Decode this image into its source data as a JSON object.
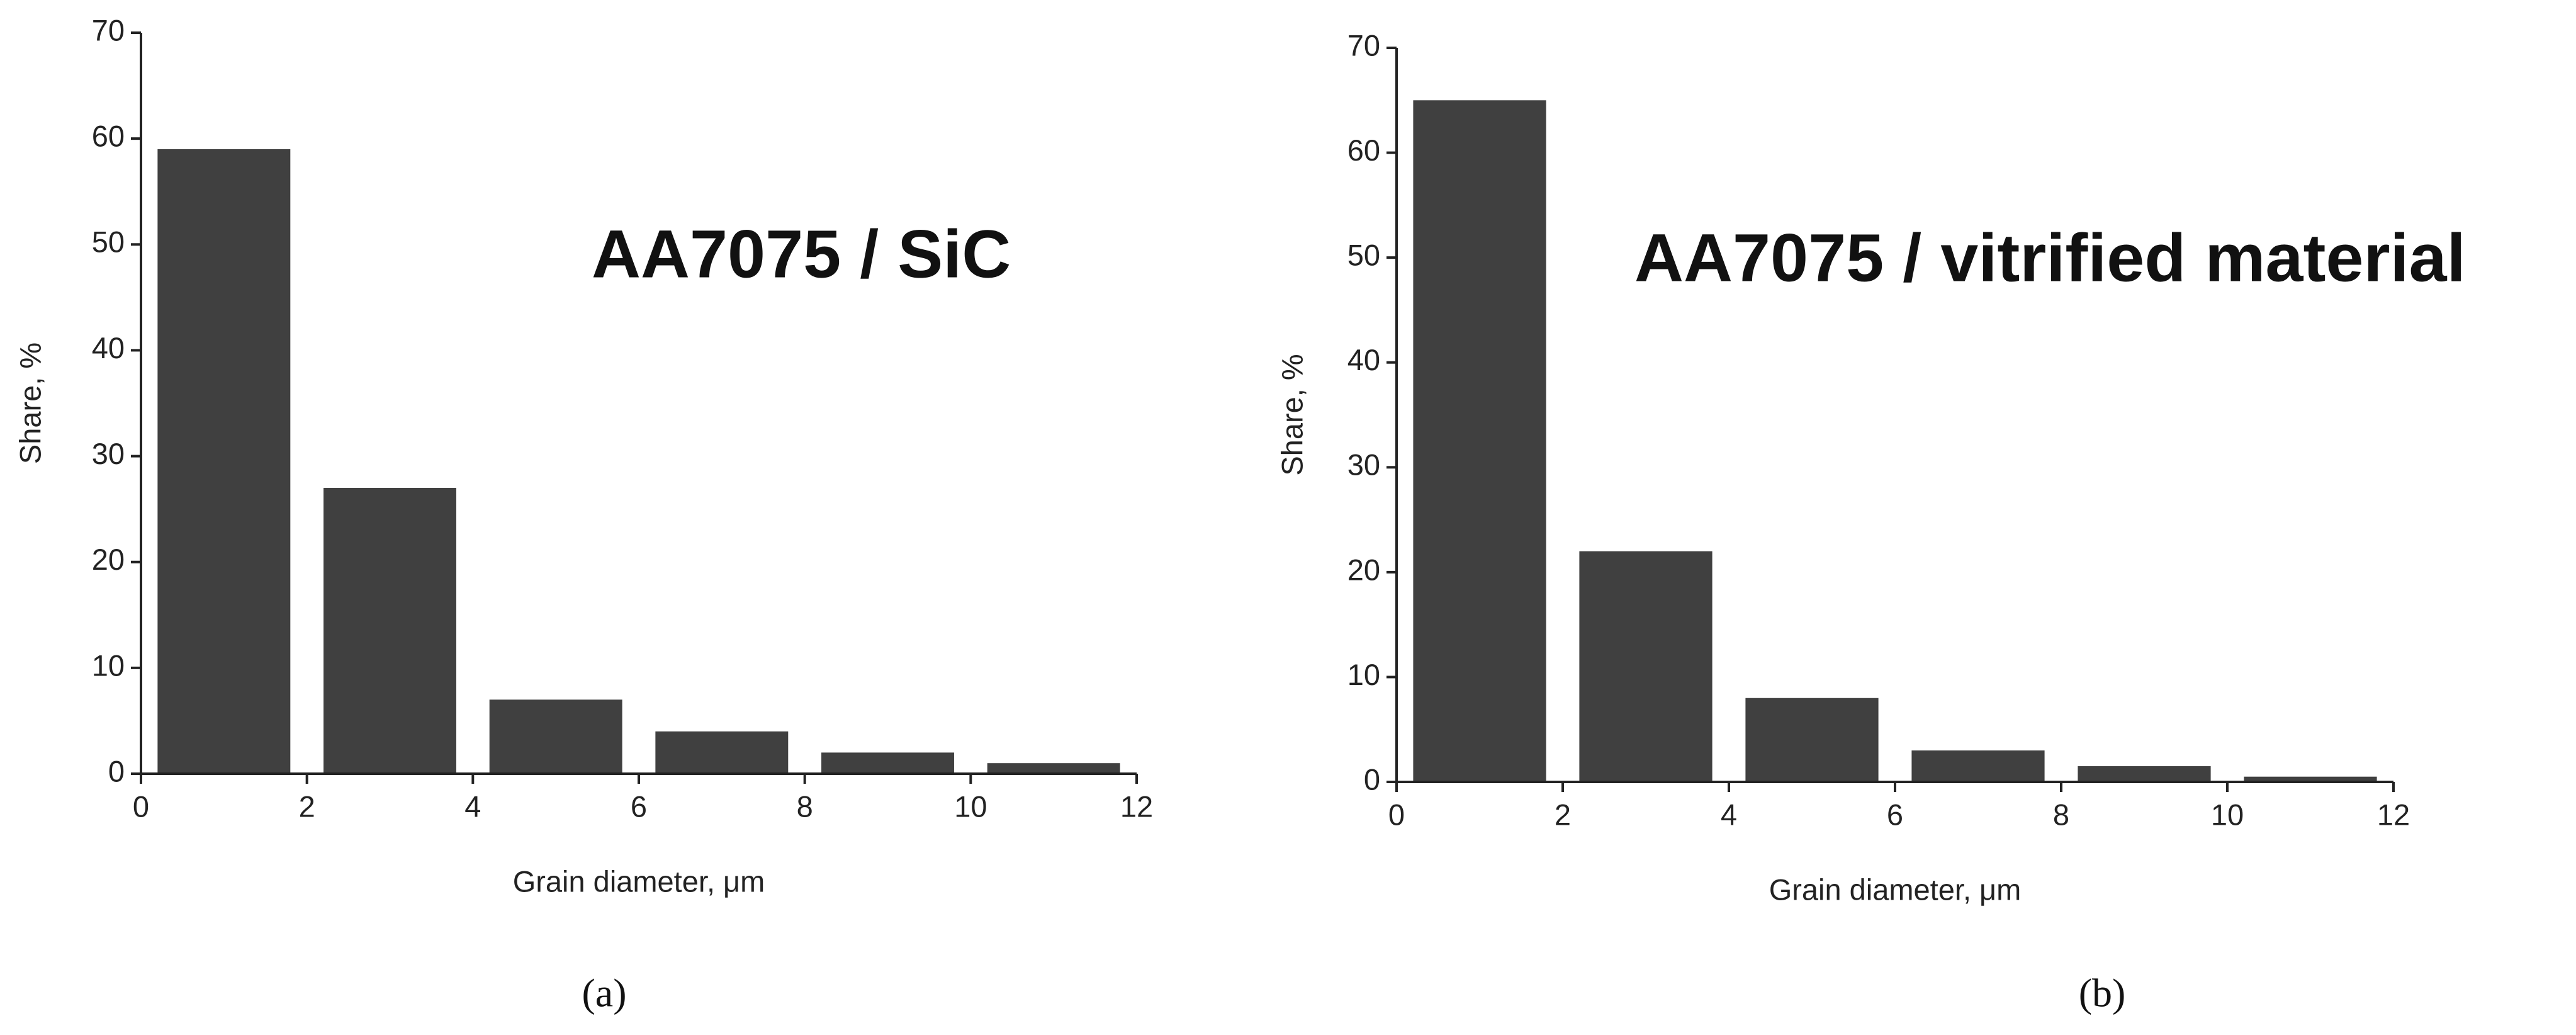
{
  "chart_data": [
    {
      "type": "histogram",
      "annotation": "AA7075 / SiC",
      "caption": "(a)",
      "x_label": "Grain diameter, μm",
      "y_label": "Share, %",
      "bins": [
        0,
        2,
        4,
        6,
        8,
        10,
        12
      ],
      "values": [
        59,
        27,
        7,
        4,
        2,
        1
      ],
      "color": "#404040",
      "xlim": [
        0,
        12
      ],
      "ylim": [
        0,
        70
      ],
      "xticks": [
        0,
        2,
        4,
        6,
        8,
        10,
        12
      ],
      "yticks": [
        0,
        10,
        20,
        30,
        40,
        50,
        60,
        70
      ]
    },
    {
      "type": "histogram",
      "annotation": "AA7075 / vitrified material",
      "caption": "(b)",
      "x_label": "Grain diameter, μm",
      "y_label": "Share, %",
      "bins": [
        0,
        2,
        4,
        6,
        8,
        10,
        12
      ],
      "values": [
        65,
        22,
        8,
        3,
        1.5,
        0.5
      ],
      "color": "#404040",
      "xlim": [
        0,
        12
      ],
      "ylim": [
        0,
        70
      ],
      "xticks": [
        0,
        2,
        4,
        6,
        8,
        10,
        12
      ],
      "yticks": [
        0,
        10,
        20,
        30,
        40,
        50,
        60,
        70
      ]
    }
  ]
}
